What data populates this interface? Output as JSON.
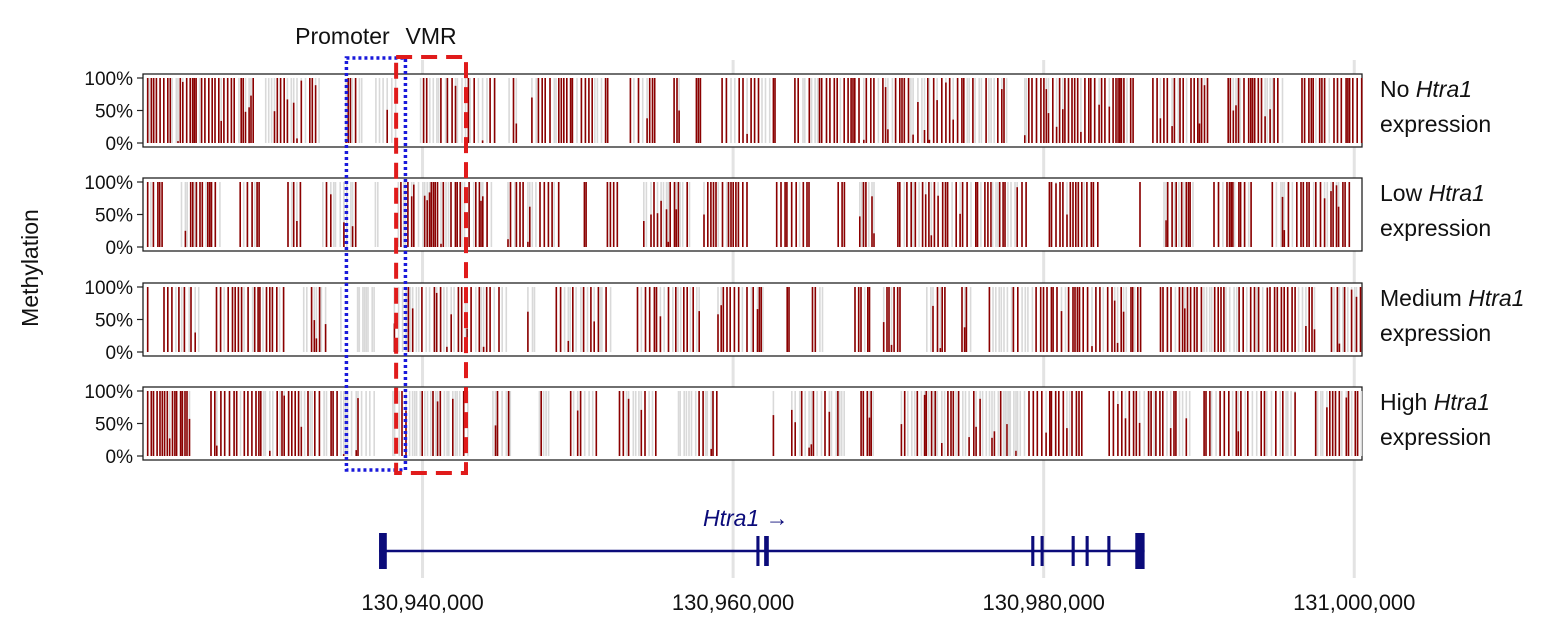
{
  "chart_data": {
    "type": "bar",
    "ylabel": "Methylation",
    "ytick_labels": [
      "100%",
      "50%",
      "0%"
    ],
    "ylim": [
      0,
      100
    ],
    "xlim": [
      130922000,
      131000500
    ],
    "x_ticks": [
      130940000,
      130960000,
      130980000,
      131000000
    ],
    "x_tick_labels": [
      "130,940,000",
      "130,960,000",
      "130,980,000",
      "131,000,000"
    ],
    "colors": {
      "methylated": "#8b0000",
      "unmethylated": "#d9d9d9",
      "promoter_box": "#1a1adb",
      "vmr_box": "#e01b1b",
      "gene": "#0b0b7a"
    },
    "regions": [
      {
        "label": "Promoter",
        "start": 130935100,
        "end": 130938900,
        "style": "dotted"
      },
      {
        "label": "VMR",
        "start": 130938300,
        "end": 130942800,
        "style": "dashed"
      }
    ],
    "panels": [
      {
        "label_prefix": "No",
        "label_gene": "Htra1",
        "label_suffix": "expression",
        "seed": 11,
        "regions": [
          {
            "from": 130922100,
            "to": 130928000,
            "level": 78
          },
          {
            "from": 130928000,
            "to": 130933500,
            "level": 70
          },
          {
            "from": 130933500,
            "to": 130935700,
            "level": 45
          },
          {
            "from": 130935700,
            "to": 130938200,
            "level": 6
          },
          {
            "from": 130938200,
            "to": 130942800,
            "level": 55
          },
          {
            "from": 130942800,
            "to": 130950000,
            "level": 75
          },
          {
            "from": 130950000,
            "to": 130958000,
            "level": 68
          },
          {
            "from": 130958000,
            "to": 130966000,
            "level": 72
          },
          {
            "from": 130966000,
            "to": 130975000,
            "level": 80
          },
          {
            "from": 130975000,
            "to": 130979000,
            "level": 55
          },
          {
            "from": 130979000,
            "to": 130988000,
            "level": 90
          },
          {
            "from": 130988000,
            "to": 131000400,
            "level": 80
          }
        ]
      },
      {
        "label_prefix": "Low",
        "label_gene": "Htra1",
        "label_suffix": "expression",
        "seed": 23,
        "regions": [
          {
            "from": 130922100,
            "to": 130928000,
            "level": 78
          },
          {
            "from": 130928000,
            "to": 130933500,
            "level": 68
          },
          {
            "from": 130933500,
            "to": 130935700,
            "level": 45
          },
          {
            "from": 130935700,
            "to": 130938200,
            "level": 8
          },
          {
            "from": 130938200,
            "to": 130942800,
            "level": 45
          },
          {
            "from": 130942800,
            "to": 130950000,
            "level": 72
          },
          {
            "from": 130950000,
            "to": 130958000,
            "level": 62
          },
          {
            "from": 130958000,
            "to": 130966000,
            "level": 70
          },
          {
            "from": 130966000,
            "to": 130975000,
            "level": 78
          },
          {
            "from": 130975000,
            "to": 130979000,
            "level": 50
          },
          {
            "from": 130979000,
            "to": 130988000,
            "level": 88
          },
          {
            "from": 130988000,
            "to": 131000400,
            "level": 78
          }
        ]
      },
      {
        "label_prefix": "Medium",
        "label_gene": "Htra1",
        "label_suffix": "expression",
        "seed": 37,
        "regions": [
          {
            "from": 130922100,
            "to": 130928000,
            "level": 74
          },
          {
            "from": 130928000,
            "to": 130933500,
            "level": 66
          },
          {
            "from": 130933500,
            "to": 130935700,
            "level": 45
          },
          {
            "from": 130935700,
            "to": 130938200,
            "level": 10
          },
          {
            "from": 130938200,
            "to": 130942800,
            "level": 38
          },
          {
            "from": 130942800,
            "to": 130950000,
            "level": 64
          },
          {
            "from": 130950000,
            "to": 130958000,
            "level": 58
          },
          {
            "from": 130958000,
            "to": 130966000,
            "level": 64
          },
          {
            "from": 130966000,
            "to": 130975000,
            "level": 74
          },
          {
            "from": 130975000,
            "to": 130979000,
            "level": 40
          },
          {
            "from": 130979000,
            "to": 130988000,
            "level": 86
          },
          {
            "from": 130988000,
            "to": 131000400,
            "level": 72
          }
        ]
      },
      {
        "label_prefix": "High",
        "label_gene": "Htra1",
        "label_suffix": "expression",
        "seed": 53,
        "regions": [
          {
            "from": 130922100,
            "to": 130928000,
            "level": 78
          },
          {
            "from": 130928000,
            "to": 130933500,
            "level": 66
          },
          {
            "from": 130933500,
            "to": 130935700,
            "level": 40
          },
          {
            "from": 130935700,
            "to": 130938200,
            "level": 12
          },
          {
            "from": 130938200,
            "to": 130942800,
            "level": 8
          },
          {
            "from": 130942800,
            "to": 130950000,
            "level": 42
          },
          {
            "from": 130950000,
            "to": 130958000,
            "level": 38
          },
          {
            "from": 130958000,
            "to": 130966000,
            "level": 44
          },
          {
            "from": 130966000,
            "to": 130975000,
            "level": 42
          },
          {
            "from": 130975000,
            "to": 130979000,
            "level": 20
          },
          {
            "from": 130979000,
            "to": 130988000,
            "level": 82
          },
          {
            "from": 130988000,
            "to": 131000400,
            "level": 56
          }
        ]
      }
    ],
    "gene": {
      "name": "Htra1",
      "arrow": "→",
      "start": 130937200,
      "end": 130986500,
      "exons": [
        {
          "start": 130937200,
          "end": 130937700
        },
        {
          "start": 130961500,
          "end": 130961700
        },
        {
          "start": 130962000,
          "end": 130962300
        },
        {
          "start": 130979200,
          "end": 130979400
        },
        {
          "start": 130979800,
          "end": 130980000
        },
        {
          "start": 130981800,
          "end": 130982000
        },
        {
          "start": 130982700,
          "end": 130982900
        },
        {
          "start": 130984100,
          "end": 130984300
        },
        {
          "start": 130985900,
          "end": 130986500
        }
      ]
    }
  }
}
